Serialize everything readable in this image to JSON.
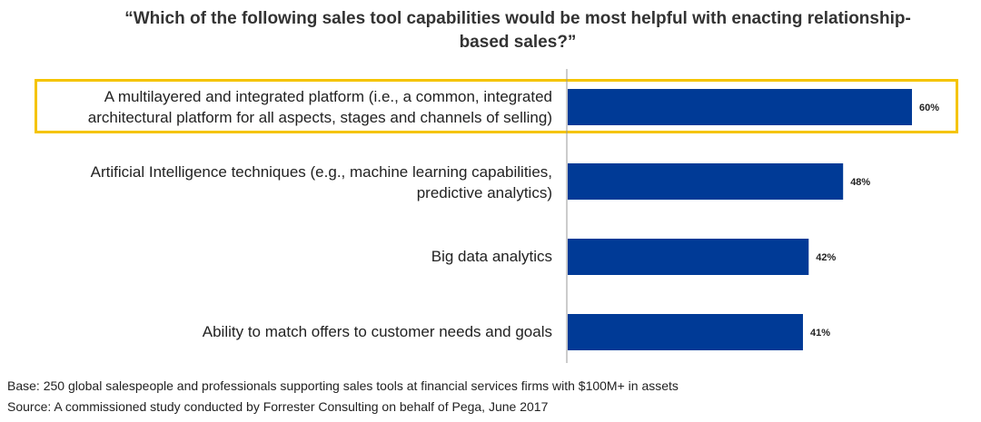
{
  "chart_data": {
    "type": "bar",
    "orientation": "horizontal",
    "title_lines": [
      "“Which of the following sales tool capabilities would be most helpful with enacting relationship-",
      "based sales?”"
    ],
    "categories": [
      [
        "A multilayered and integrated platform (i.e., a common, integrated",
        "architectural platform for all aspects, stages and channels of selling)"
      ],
      [
        "Artificial Intelligence techniques (e.g., machine learning capabilities,",
        "predictive analytics)"
      ],
      [
        "Big data analytics"
      ],
      [
        "Ability to match offers to customer needs and goals"
      ]
    ],
    "values": [
      60,
      48,
      42,
      41
    ],
    "value_labels": [
      "60%",
      "48%",
      "42%",
      "41%"
    ],
    "xlim": [
      0,
      62
    ],
    "highlighted_index": 0,
    "colors": {
      "bar": "#003a96",
      "highlight": "#f5c400",
      "axis": "#9a9a9a"
    }
  },
  "footnotes": {
    "base": "Base: 250 global salespeople and professionals supporting sales tools at financial services firms with $100M+ in assets",
    "source": "Source: A commissioned study conducted by Forrester Consulting on behalf of Pega, June 2017"
  }
}
